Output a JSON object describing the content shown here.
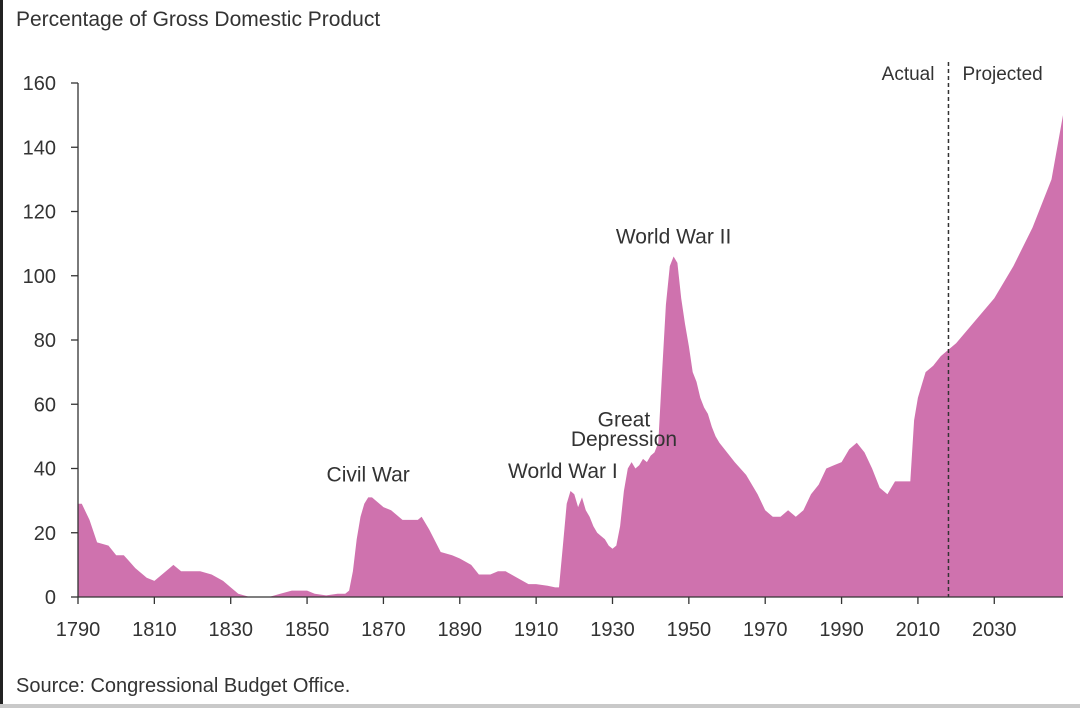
{
  "header": {
    "ylabel": "Percentage of Gross Domestic Product"
  },
  "footer": {
    "source": "Source: Congressional Budget Office."
  },
  "colors": {
    "fill": "#cf72ae",
    "axis": "#333333",
    "divider": "#333333"
  },
  "chart_data": {
    "type": "area",
    "title": "",
    "xlabel": "",
    "ylabel": "Percentage of Gross Domestic Product",
    "xlim": [
      1790,
      2048
    ],
    "ylim": [
      0,
      160
    ],
    "y_ticks": [
      0,
      20,
      40,
      60,
      80,
      100,
      120,
      140,
      160
    ],
    "x_ticks": [
      1790,
      1810,
      1830,
      1850,
      1870,
      1890,
      1910,
      1930,
      1950,
      1970,
      1990,
      2010,
      2030
    ],
    "grid": false,
    "divider": {
      "x": 2018,
      "left_label": "Actual",
      "right_label": "Projected"
    },
    "annotations": [
      {
        "text": "Civil War",
        "x": 1866,
        "y": 36
      },
      {
        "text": "World War I",
        "x": 1917,
        "y": 37
      },
      {
        "text": "Great",
        "x": 1933,
        "y": 53
      },
      {
        "text": "Depression",
        "x": 1933,
        "y": 47
      },
      {
        "text": "World War II",
        "x": 1946,
        "y": 110
      }
    ],
    "series": [
      {
        "values_x": [
          1790,
          1791,
          1793,
          1795,
          1798,
          1800,
          1802,
          1805,
          1808,
          1810,
          1812,
          1814,
          1815,
          1817,
          1820,
          1822,
          1825,
          1828,
          1830,
          1832,
          1835,
          1840,
          1843,
          1846,
          1850,
          1852,
          1855,
          1858,
          1860,
          1861,
          1862,
          1863,
          1864,
          1865,
          1866,
          1867,
          1868,
          1870,
          1872,
          1875,
          1878,
          1879,
          1880,
          1882,
          1885,
          1888,
          1890,
          1893,
          1895,
          1898,
          1900,
          1902,
          1905,
          1908,
          1910,
          1913,
          1915,
          1916,
          1917,
          1918,
          1919,
          1920,
          1921,
          1922,
          1923,
          1924,
          1925,
          1926,
          1927,
          1928,
          1929,
          1930,
          1931,
          1932,
          1933,
          1934,
          1935,
          1936,
          1937,
          1938,
          1939,
          1940,
          1941,
          1942,
          1943,
          1944,
          1945,
          1946,
          1947,
          1948,
          1949,
          1950,
          1951,
          1952,
          1953,
          1954,
          1955,
          1956,
          1957,
          1958,
          1960,
          1962,
          1965,
          1968,
          1970,
          1972,
          1974,
          1976,
          1978,
          1980,
          1982,
          1984,
          1986,
          1988,
          1990,
          1992,
          1994,
          1996,
          1998,
          2000,
          2002,
          2004,
          2006,
          2008,
          2009,
          2010,
          2011,
          2012,
          2014,
          2016,
          2018,
          2020,
          2025,
          2030,
          2035,
          2040,
          2045,
          2048
        ],
        "values": [
          29,
          29,
          24,
          17,
          16,
          13,
          13,
          9,
          6,
          5,
          7,
          9,
          10,
          8,
          8,
          8,
          7,
          5,
          3,
          1,
          0,
          0,
          1,
          2,
          2,
          1,
          0.5,
          1,
          1,
          2,
          8,
          18,
          25,
          29,
          31,
          31,
          30,
          28,
          27,
          24,
          24,
          24,
          25,
          21,
          14,
          13,
          12,
          10,
          7,
          7,
          8,
          8,
          6,
          4,
          4,
          3.5,
          3,
          3,
          16,
          29,
          33,
          32,
          28,
          31,
          27,
          25,
          22,
          20,
          19,
          18,
          16,
          15,
          16,
          22,
          33,
          40,
          42,
          40,
          41,
          43,
          42,
          44,
          45,
          48,
          70,
          91,
          103,
          106,
          104,
          93,
          85,
          78,
          70,
          67,
          62,
          59,
          57,
          53,
          50,
          48,
          45,
          42,
          38,
          32,
          27,
          25,
          25,
          27,
          25,
          27,
          32,
          35,
          40,
          41,
          42,
          46,
          48,
          45,
          40,
          34,
          32,
          36,
          36,
          36,
          55,
          62,
          66,
          70,
          72,
          75,
          77,
          79,
          86,
          93,
          103,
          115,
          130,
          150
        ]
      }
    ]
  }
}
